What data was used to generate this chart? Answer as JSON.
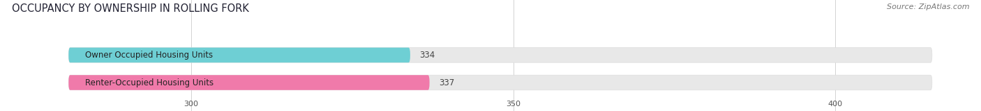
{
  "title": "OCCUPANCY BY OWNERSHIP IN ROLLING FORK",
  "source": "Source: ZipAtlas.com",
  "categories": [
    "Owner Occupied Housing Units",
    "Renter-Occupied Housing Units"
  ],
  "values": [
    334,
    337
  ],
  "bar_colors": [
    "#6ecfd4",
    "#f07aaa"
  ],
  "bar_bg_color": "#e8e8e8",
  "xlim_min": 281,
  "xlim_max": 415,
  "xticks": [
    300,
    350,
    400
  ],
  "title_fontsize": 10.5,
  "source_fontsize": 8,
  "label_fontsize": 8.5,
  "value_fontsize": 8.5,
  "title_color": "#222233",
  "source_color": "#777777",
  "bg_color": "#ffffff",
  "bar_height": 0.52
}
